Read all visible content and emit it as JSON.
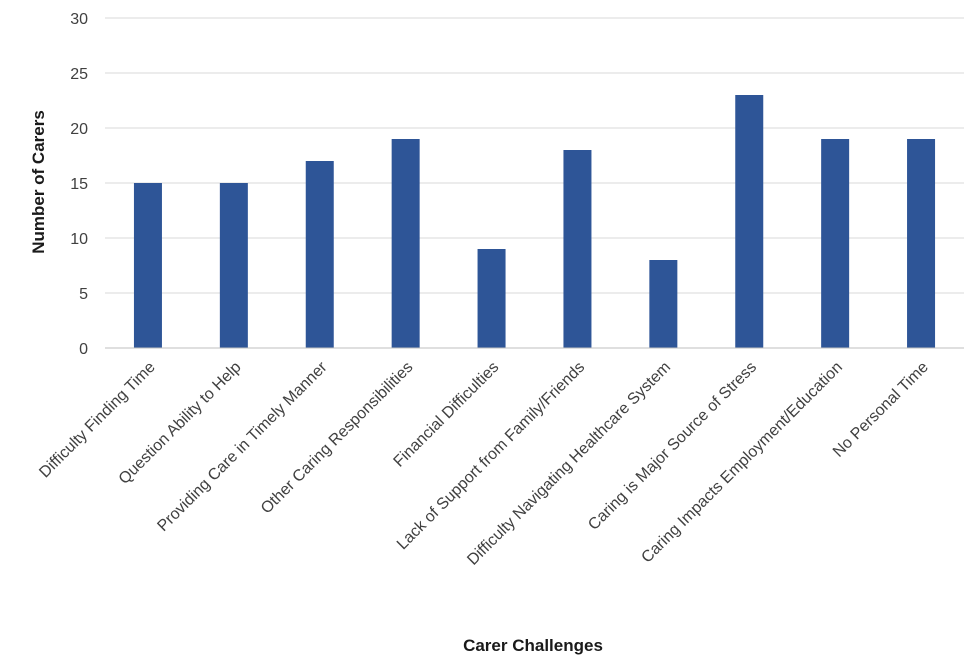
{
  "chart_data": {
    "type": "bar",
    "title": "",
    "xlabel": "Carer Challenges",
    "ylabel": "Number of Carers",
    "ylim": [
      0,
      30
    ],
    "yticks": [
      0,
      5,
      10,
      15,
      20,
      25,
      30
    ],
    "grid": true,
    "legend": "none",
    "bar_color": "#2e5597",
    "categories": [
      "Difficulty Finding Time",
      "Question Ability to Help",
      "Providing Care in Timely Manner",
      "Other Caring Responsibilities",
      "Financial Difficulties",
      "Lack of Support from Family/Friends",
      "Difficulty Navigating Healthcare System",
      "Caring is Major Source of Stress",
      "Caring Impacts Employment/Education",
      "No Personal Time"
    ],
    "values": [
      15,
      15,
      17,
      19,
      9,
      18,
      8,
      23,
      19,
      19
    ]
  }
}
